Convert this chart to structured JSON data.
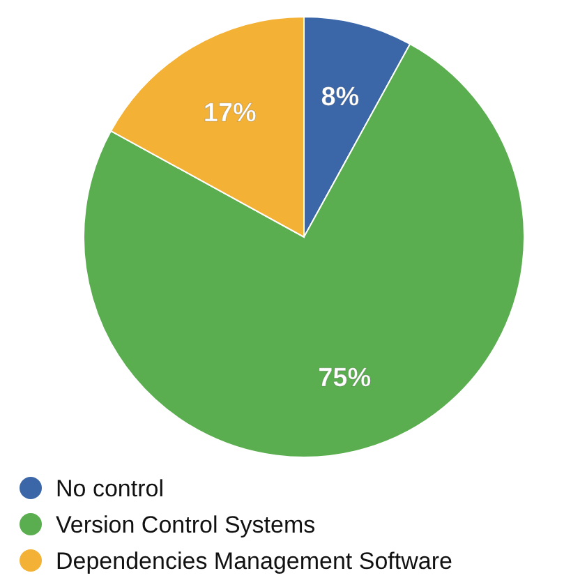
{
  "chart_data": {
    "type": "pie",
    "categories": [
      "No control",
      "Version Control Systems",
      "Dependencies Management Software"
    ],
    "values": [
      8,
      75,
      17
    ],
    "colors": [
      "#3b67a9",
      "#5aae4f",
      "#f3b236"
    ],
    "value_labels": [
      "8%",
      "75%",
      "17%"
    ],
    "legend": "bottom left"
  }
}
